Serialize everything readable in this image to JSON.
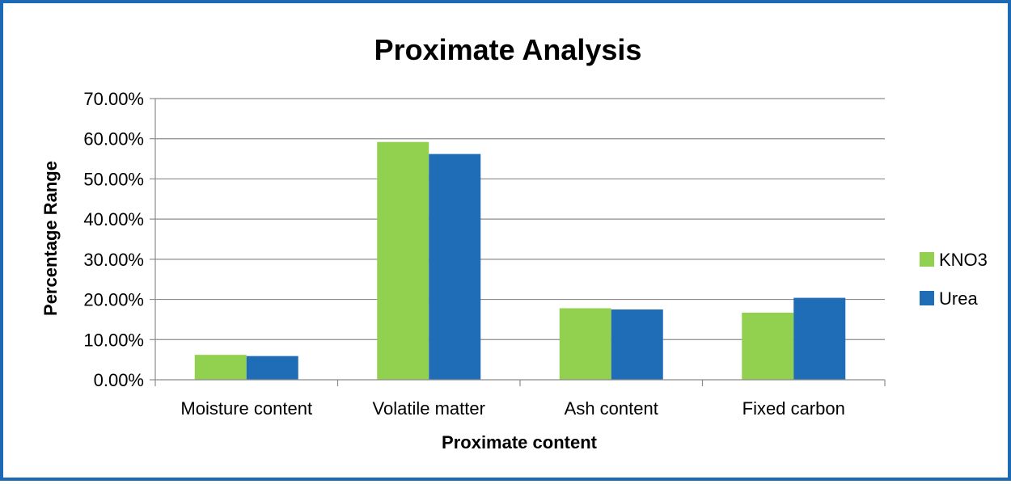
{
  "chart_data": {
    "type": "bar",
    "title": "Proximate Analysis",
    "xlabel": "Proximate content",
    "ylabel": "Percentage Range",
    "categories": [
      "Moisture content",
      "Volatile matter",
      "Ash content",
      "Fixed carbon"
    ],
    "series": [
      {
        "name": "KNO3",
        "values": [
          6.2,
          59.2,
          17.8,
          16.7
        ],
        "color": "#92d050"
      },
      {
        "name": "Urea",
        "values": [
          5.9,
          56.2,
          17.5,
          20.4
        ],
        "color": "#1f6db6"
      }
    ],
    "value_unit": "%",
    "ylim": [
      0,
      70
    ],
    "yticks": [
      0,
      10,
      20,
      30,
      40,
      50,
      60,
      70
    ],
    "ytick_labels": [
      "0.00%",
      "10.00%",
      "20.00%",
      "30.00%",
      "40.00%",
      "50.00%",
      "60.00%",
      "70.00%"
    ],
    "grid": true,
    "legend_position": "right"
  },
  "colors": {
    "frame_border": "#1c6ab5",
    "gridline": "#8c8c8c",
    "axis": "#8c8c8c"
  }
}
